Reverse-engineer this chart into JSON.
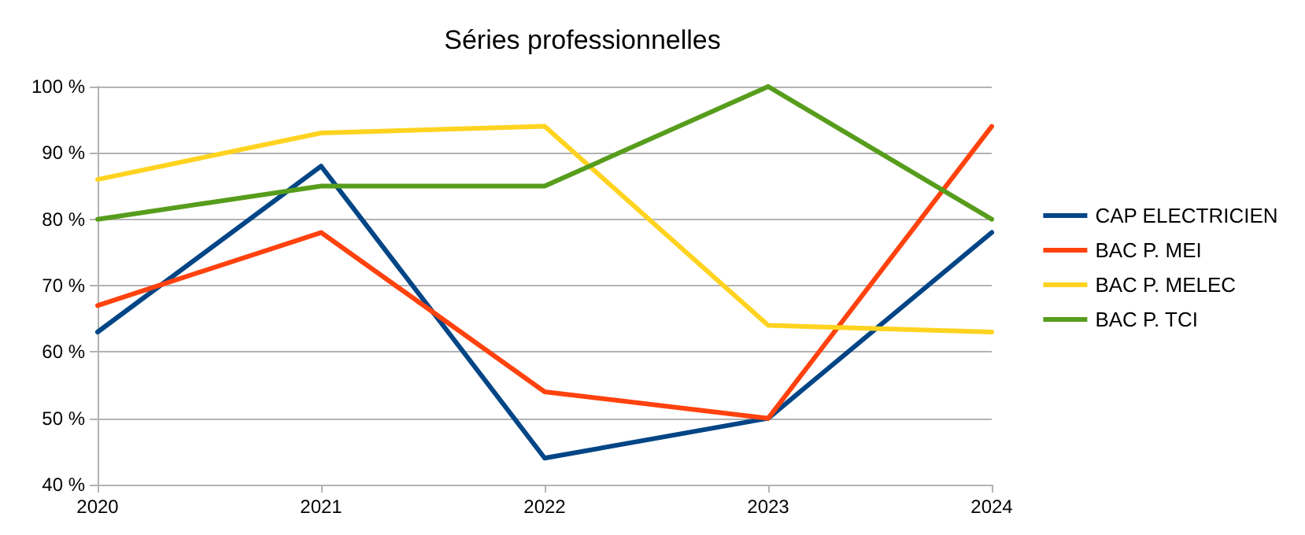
{
  "chart_data": {
    "type": "line",
    "title": "Séries professionnelles",
    "categories": [
      "2020",
      "2021",
      "2022",
      "2023",
      "2024"
    ],
    "series": [
      {
        "name": "CAP ELECTRICIEN",
        "color": "#004586",
        "values": [
          63,
          88,
          44,
          50,
          78
        ]
      },
      {
        "name": "BAC P. MEI",
        "color": "#ff420e",
        "values": [
          67,
          78,
          54,
          50,
          94
        ]
      },
      {
        "name": "BAC P. MELEC",
        "color": "#ffd320",
        "values": [
          86,
          93,
          94,
          64,
          63
        ]
      },
      {
        "name": "BAC P. TCI",
        "color": "#579d1c",
        "values": [
          80,
          85,
          85,
          100,
          80
        ]
      }
    ],
    "ylim": [
      40,
      100
    ],
    "yticks": [
      {
        "value": 40,
        "label": "40 %"
      },
      {
        "value": 50,
        "label": "50 %"
      },
      {
        "value": 60,
        "label": "60 %"
      },
      {
        "value": 70,
        "label": "70 %"
      },
      {
        "value": 80,
        "label": "80 %"
      },
      {
        "value": 90,
        "label": "90 %"
      },
      {
        "value": 100,
        "label": "100 %"
      }
    ],
    "grid": "y",
    "legend": "right",
    "marker": "none",
    "line_style": "solid"
  }
}
